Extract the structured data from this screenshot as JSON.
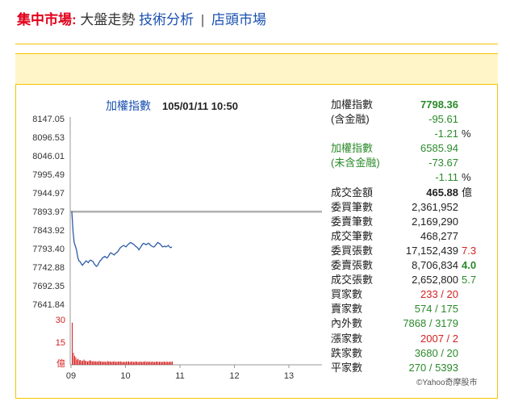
{
  "nav": {
    "lead": "集中市場:",
    "current": "大盤走勢",
    "link_tech": "技術分析",
    "separator": "|",
    "link_otc": "店頭市場"
  },
  "chart_header": {
    "title": "加權指數",
    "datetime": "105/01/11 10:50"
  },
  "colors": {
    "index_line": "#2a5ba8",
    "volume_bar": "#d42020",
    "ref_line": "#b0b0b0",
    "accent": "#f3c400"
  },
  "chart_data": {
    "type": "line",
    "title": "加權指數",
    "y_ticks": [
      "8147.05",
      "8096.53",
      "8046.01",
      "7995.49",
      "7944.97",
      "7893.97",
      "7843.92",
      "7793.40",
      "7742.88",
      "7692.35",
      "7641.84"
    ],
    "ylim": [
      7641.84,
      8147.05
    ],
    "reference": 7893.97,
    "x_ticks": [
      "09",
      "10",
      "11",
      "12",
      "13"
    ],
    "xlim_hours": [
      9,
      13.5
    ],
    "series": [
      {
        "values": [
          7893.97,
          7840,
          7810,
          7800,
          7790,
          7770,
          7760,
          7758,
          7752,
          7748,
          7752,
          7755,
          7760,
          7758,
          7755,
          7760,
          7762,
          7760,
          7758,
          7752,
          7748,
          7745,
          7748,
          7755,
          7760,
          7763,
          7768,
          7770,
          7772,
          7770,
          7768,
          7772,
          7778,
          7782,
          7780,
          7778,
          7776,
          7780,
          7782,
          7785,
          7790,
          7795,
          7798,
          7800,
          7802,
          7800,
          7798,
          7802,
          7805,
          7808,
          7810,
          7808,
          7806,
          7804,
          7800,
          7798,
          7795,
          7790,
          7795,
          7800,
          7805,
          7808,
          7806,
          7804,
          7806,
          7808,
          7806,
          7802,
          7800,
          7798,
          7798,
          7802,
          7806,
          7810,
          7808,
          7806,
          7802,
          7798,
          7799,
          7800,
          7798,
          7800,
          7802,
          7798,
          7796,
          7798
        ]
      }
    ],
    "volume": {
      "ticks": [
        "30",
        "15",
        "億"
      ],
      "ylim": [
        0,
        30
      ],
      "values": [
        28,
        8,
        6,
        5,
        3.5,
        4,
        3,
        3.2,
        2.5,
        2.8,
        3.5,
        2.7,
        2.5,
        2.2,
        2.5,
        3,
        2.8,
        2.2,
        2.5,
        2.2,
        2.4,
        2.1,
        2.2,
        2.6,
        2.1,
        2.3,
        2,
        2.2,
        2.1,
        1.9,
        2.5,
        2.1,
        2.3,
        2,
        2.2,
        2.1,
        2.4,
        1.9,
        2,
        2.2,
        2.1,
        2.3,
        2,
        1.8,
        2.1,
        1.9,
        2.2,
        2,
        2.3,
        1.9,
        2.1,
        2.2,
        1.9,
        2,
        2.3,
        2.1,
        1.8,
        2,
        2.2,
        1.9,
        2.1,
        2,
        2.4,
        1.8,
        2.2,
        2,
        2.1,
        1.9,
        2.2,
        2,
        1.8,
        2.1,
        2.3,
        1.9,
        2,
        2.1,
        1.8,
        2,
        2.2,
        1.9,
        2.1,
        2,
        1.9,
        2.1,
        2,
        2.2
      ]
    }
  },
  "info": {
    "rows": [
      {
        "label": "加權指數",
        "v1": "7798.36",
        "v1_class": "green bold",
        "v2": "",
        "v2_class": ""
      },
      {
        "label": "(含金融)",
        "v1": "-95.61",
        "v1_class": "green",
        "v2": "",
        "v2_class": ""
      },
      {
        "label": "",
        "v1": "-1.21",
        "v1_class": "green",
        "v2": "%",
        "v2_class": "blk"
      },
      {
        "label": "加權指數",
        "v1": "6585.94",
        "v1_class": "green",
        "v2": "",
        "v2_class": "",
        "label_class": "green"
      },
      {
        "label": "(未含金融)",
        "v1": "-73.67",
        "v1_class": "green",
        "v2": "",
        "v2_class": "",
        "label_class": "green"
      },
      {
        "label": "",
        "v1": "-1.11",
        "v1_class": "green",
        "v2": "%",
        "v2_class": "blk"
      },
      {
        "label": "成交金額",
        "v1": "465.88",
        "v1_class": "blk bold",
        "v2": "億",
        "v2_class": "blk"
      },
      {
        "label": "委買筆數",
        "v1": "2,361,952",
        "v1_class": "blk",
        "v2": "",
        "v2_class": ""
      },
      {
        "label": "委賣筆數",
        "v1": "2,169,290",
        "v1_class": "blk",
        "v2": "",
        "v2_class": ""
      },
      {
        "label": "成交筆數",
        "v1": "468,277",
        "v1_class": "blk",
        "v2": "",
        "v2_class": ""
      },
      {
        "label": "委買張數",
        "v1": "17,152,439",
        "v1_class": "blk",
        "v2": "7.3",
        "v2_class": "red"
      },
      {
        "label": "委賣張數",
        "v1": "8,706,834",
        "v1_class": "blk",
        "v2": "4.0",
        "v2_class": "green bold"
      },
      {
        "label": "成交張數",
        "v1": "2,652,800",
        "v1_class": "blk",
        "v2": "5.7",
        "v2_class": "green"
      },
      {
        "label": "買家數",
        "v1": "233 / 20",
        "v1_class": "red",
        "v2": "",
        "v2_class": ""
      },
      {
        "label": "賣家數",
        "v1": "574 / 175",
        "v1_class": "green",
        "v2": "",
        "v2_class": ""
      },
      {
        "label": "內外數",
        "v1": "7868 / 3179",
        "v1_class": "green",
        "v2": "",
        "v2_class": ""
      },
      {
        "label": "漲家數",
        "v1": "2007 / 2",
        "v1_class": "red",
        "v2": "",
        "v2_class": ""
      },
      {
        "label": "跌家數",
        "v1": "3680 / 20",
        "v1_class": "green",
        "v2": "",
        "v2_class": ""
      },
      {
        "label": "平家數",
        "v1": "270 / 5393",
        "v1_class": "green",
        "v2": "",
        "v2_class": ""
      }
    ]
  },
  "copyright": "©Yahoo奇摩股市"
}
